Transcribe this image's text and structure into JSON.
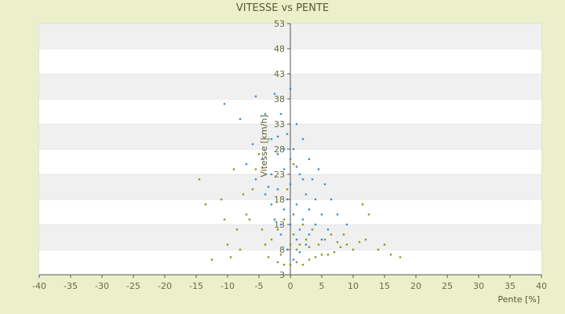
{
  "chart_data": {
    "type": "scatter",
    "title": "VITESSE vs PENTE",
    "xlabel": "Pente [%]",
    "ylabel": "Vitesse [km/h]",
    "xlim": [
      -40,
      40
    ],
    "ylim": [
      3,
      53
    ],
    "x_ticks": [
      "-40",
      "-35",
      "-30",
      "-25",
      "-20",
      "-15",
      "-10",
      "-5",
      "0",
      "5",
      "10",
      "15",
      "20",
      "25",
      "30",
      "35",
      "40"
    ],
    "y_ticks": [
      "3",
      "8",
      "13",
      "18",
      "23",
      "28",
      "33",
      "38",
      "43",
      "48",
      "53"
    ],
    "grid": "alternating horizontal bands",
    "series": [
      {
        "color": "#8a9a18",
        "points": [
          [
            -12.5,
            6
          ],
          [
            -13.5,
            17
          ],
          [
            -14.5,
            22
          ],
          [
            -11,
            18
          ],
          [
            -10,
            9
          ],
          [
            -9.5,
            6.5
          ],
          [
            -8,
            8
          ],
          [
            -8.5,
            12
          ],
          [
            -7,
            15
          ],
          [
            -6,
            20
          ],
          [
            -5.5,
            24
          ],
          [
            -7.5,
            19
          ],
          [
            -4,
            9
          ],
          [
            -3.5,
            6.5
          ],
          [
            -2,
            5.5
          ],
          [
            -1,
            5
          ],
          [
            0,
            5
          ],
          [
            1,
            5.5
          ],
          [
            2,
            5
          ],
          [
            3,
            6
          ],
          [
            4,
            6.5
          ],
          [
            5,
            7
          ],
          [
            6,
            7
          ],
          [
            7,
            7.5
          ],
          [
            8,
            8.5
          ],
          [
            9,
            9
          ],
          [
            10,
            8
          ],
          [
            11,
            9.5
          ],
          [
            12,
            10
          ],
          [
            12.5,
            15
          ],
          [
            11.5,
            17
          ],
          [
            14,
            8
          ],
          [
            15,
            9
          ],
          [
            16,
            7
          ],
          [
            17.5,
            6.5
          ],
          [
            -3,
            10
          ],
          [
            -2,
            12
          ],
          [
            -1,
            14
          ],
          [
            0.5,
            11
          ],
          [
            1.5,
            9
          ],
          [
            2.5,
            10
          ],
          [
            3.5,
            12
          ],
          [
            4.5,
            9
          ],
          [
            5.5,
            10
          ],
          [
            6.5,
            11
          ],
          [
            7.5,
            9.5
          ],
          [
            8.5,
            11
          ],
          [
            -4.5,
            12
          ],
          [
            -6.5,
            14
          ],
          [
            -5,
            27
          ],
          [
            -3.5,
            30
          ],
          [
            -9,
            24
          ],
          [
            -10.5,
            14
          ],
          [
            1,
            8
          ],
          [
            3,
            8.5
          ],
          [
            -1.5,
            7
          ],
          [
            0,
            9
          ],
          [
            2,
            13
          ],
          [
            -0.5,
            20
          ],
          [
            0.5,
            25
          ]
        ]
      },
      {
        "color": "#3b8fd9",
        "points": [
          [
            -10.5,
            37
          ],
          [
            -5.5,
            38.5
          ],
          [
            -2.5,
            39
          ],
          [
            0,
            40
          ],
          [
            -8,
            34
          ],
          [
            -4,
            35
          ],
          [
            -1.5,
            35
          ],
          [
            1,
            33
          ],
          [
            -6,
            29
          ],
          [
            -3,
            30
          ],
          [
            -0.5,
            31
          ],
          [
            2,
            30
          ],
          [
            -7,
            25
          ],
          [
            -4.5,
            26
          ],
          [
            -2,
            27
          ],
          [
            0.5,
            28
          ],
          [
            3,
            26
          ],
          [
            4.5,
            24
          ],
          [
            -5.5,
            22
          ],
          [
            -3,
            23
          ],
          [
            -1,
            24
          ],
          [
            1.5,
            23
          ],
          [
            3.5,
            22
          ],
          [
            5.5,
            21
          ],
          [
            -4,
            19
          ],
          [
            -2,
            20
          ],
          [
            0,
            21
          ],
          [
            2.5,
            19
          ],
          [
            4,
            18
          ],
          [
            6.5,
            18
          ],
          [
            -3,
            17
          ],
          [
            -1,
            16
          ],
          [
            1,
            17
          ],
          [
            3,
            16
          ],
          [
            5,
            15
          ],
          [
            7.5,
            15
          ],
          [
            -2.5,
            14
          ],
          [
            0,
            13
          ],
          [
            2,
            14
          ],
          [
            4,
            13
          ],
          [
            6,
            12
          ],
          [
            9,
            13
          ],
          [
            -1.5,
            11
          ],
          [
            1,
            10
          ],
          [
            3,
            11
          ],
          [
            5,
            10
          ],
          [
            -0.5,
            8
          ],
          [
            1.5,
            7.5
          ],
          [
            0.5,
            6
          ],
          [
            -2,
            30.5
          ],
          [
            -1,
            28
          ],
          [
            0,
            26
          ],
          [
            1,
            24.5
          ],
          [
            2,
            22
          ],
          [
            -3.5,
            20.5
          ],
          [
            -0.5,
            18
          ],
          [
            0.5,
            15
          ],
          [
            -1.5,
            13
          ],
          [
            1.5,
            12
          ],
          [
            2.5,
            9
          ]
        ]
      }
    ]
  }
}
